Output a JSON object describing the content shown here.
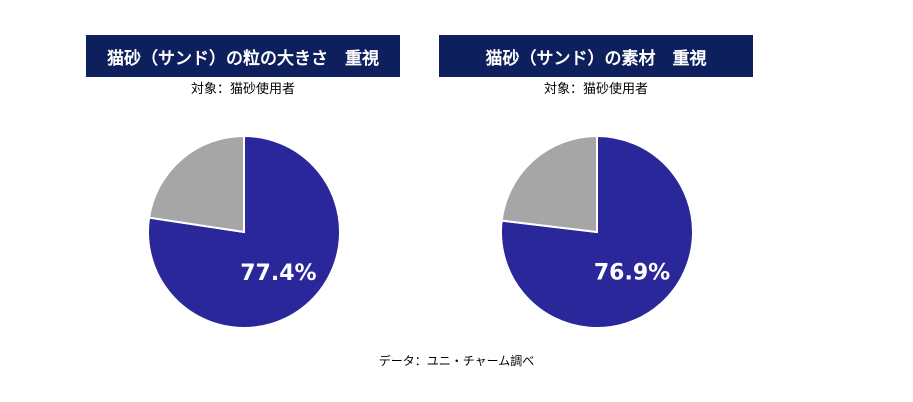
{
  "colors": {
    "title_bg": "#0d1f5c",
    "title_text": "#ffffff",
    "highlight": "#29279a",
    "other": "#a6a6a6",
    "separator": "#ffffff"
  },
  "chart_data": [
    {
      "type": "pie",
      "title": "猫砂（サンド）の粒の大きさ　重視",
      "subtitle": "対象：猫砂使用者",
      "slices": [
        {
          "value": 77.4,
          "label": "77.4%",
          "color": "#29279a"
        },
        {
          "value": 22.6,
          "label": "",
          "color": "#a6a6a6"
        }
      ]
    },
    {
      "type": "pie",
      "title": "猫砂（サンド）の素材　重視",
      "subtitle": "対象：猫砂使用者",
      "slices": [
        {
          "value": 76.9,
          "label": "76.9%",
          "color": "#29279a"
        },
        {
          "value": 23.1,
          "label": "",
          "color": "#a6a6a6"
        }
      ]
    }
  ],
  "source": "データ：ユニ・チャーム調べ"
}
